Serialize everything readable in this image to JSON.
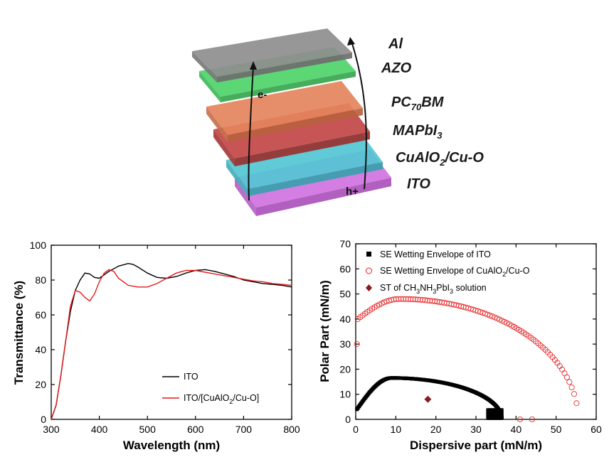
{
  "device": {
    "layers": [
      {
        "label": "Al",
        "color": "#8e8e8e"
      },
      {
        "label": "AZO",
        "color": "#4fd26a"
      },
      {
        "label": "PC70BM",
        "main": "PC",
        "sub": "70",
        "tail": "BM",
        "color": "#e4845c"
      },
      {
        "label": "MAPbI3",
        "main": "MAPbI",
        "sub": "3",
        "tail": "",
        "color": "#c24646"
      },
      {
        "label": "CuAlO2/Cu-O",
        "main": "CuAlO",
        "sub": "2",
        "tail": "/Cu-O",
        "color": "#52c6d4"
      },
      {
        "label": "ITO",
        "color": "#cf6fe0"
      }
    ],
    "electron_label": "e-",
    "hole_label": "h+"
  },
  "chart_data": [
    {
      "type": "line",
      "title": "",
      "xlabel": "Wavelength (nm)",
      "ylabel": "Transmittance (%)",
      "xlim": [
        300,
        800
      ],
      "ylim": [
        0,
        100
      ],
      "xticks": [
        300,
        400,
        500,
        600,
        700,
        800
      ],
      "yticks": [
        0,
        20,
        40,
        60,
        80,
        100
      ],
      "legend_position": "bottom-right",
      "series": [
        {
          "name": "ITO",
          "color": "#000000",
          "x": [
            300,
            310,
            320,
            330,
            340,
            350,
            360,
            370,
            380,
            390,
            400,
            420,
            440,
            460,
            470,
            480,
            500,
            520,
            540,
            560,
            580,
            600,
            620,
            640,
            660,
            680,
            700,
            720,
            740,
            760,
            780,
            800
          ],
          "y": [
            0,
            8,
            25,
            45,
            62,
            74,
            80,
            84,
            83.5,
            81.5,
            81,
            85,
            88,
            89.5,
            89,
            87.5,
            84,
            81.5,
            81,
            82,
            84,
            85.5,
            86,
            85,
            83.5,
            82,
            80,
            79,
            78,
            77.5,
            77,
            76
          ]
        },
        {
          "name": "ITO/[CuAlO2/Cu-O]",
          "name_main": "ITO/[CuAlO",
          "name_sub": "2",
          "name_tail": "/Cu-O]",
          "color": "#e41a1c",
          "x": [
            300,
            310,
            320,
            330,
            340,
            350,
            360,
            370,
            380,
            390,
            400,
            410,
            420,
            430,
            440,
            460,
            470,
            480,
            500,
            520,
            540,
            560,
            580,
            600,
            620,
            640,
            660,
            680,
            700,
            720,
            740,
            760,
            780,
            800
          ],
          "y": [
            0,
            8,
            25,
            45,
            65,
            74,
            73,
            70,
            68,
            72,
            79,
            84,
            86,
            85,
            81,
            77,
            76.5,
            76,
            76,
            78,
            81,
            84,
            85.5,
            85.5,
            84.5,
            83.5,
            82.5,
            81.5,
            80.5,
            79.5,
            79,
            78,
            77.5,
            77
          ]
        }
      ]
    },
    {
      "type": "scatter",
      "title": "",
      "xlabel": "Dispersive part (mN/m)",
      "ylabel": "Polar Part (mN/m)",
      "xlim": [
        0,
        60
      ],
      "ylim": [
        0,
        70
      ],
      "xticks": [
        0,
        10,
        20,
        30,
        40,
        50,
        60
      ],
      "yticks": [
        0,
        10,
        20,
        30,
        40,
        50,
        60,
        70
      ],
      "legend_position": "top-left",
      "series": [
        {
          "name": "SE Wetting Envelope of ITO",
          "marker": "filled-square",
          "color": "#000000",
          "envelope": {
            "x_start": 0.3,
            "x_end": 36.5,
            "x_peak": 9,
            "y_peak": 16.5,
            "y_at_start": 4,
            "step": 0.18
          }
        },
        {
          "name": "SE Wetting Envelope of CuAlO2/Cu-O",
          "name_main": "SE Wetting Envelope of CuAlO",
          "name_sub": "2",
          "name_tail": "/Cu-O",
          "marker": "open-circle",
          "color": "#e41a1c",
          "envelope": {
            "x_start": 0.5,
            "x_end": 55.5,
            "x_peak": 11,
            "y_peak": 48,
            "y_at_start": 40,
            "step": 0.6
          }
        },
        {
          "name": "ST of CH3NH3PbI3 solution",
          "name_parts": [
            "ST of CH",
            "3",
            "NH",
            "3",
            "PbI",
            "3",
            " solution"
          ],
          "marker": "filled-diamond",
          "color": "#8b1a1a",
          "x": [
            18
          ],
          "y": [
            8
          ]
        }
      ]
    }
  ]
}
